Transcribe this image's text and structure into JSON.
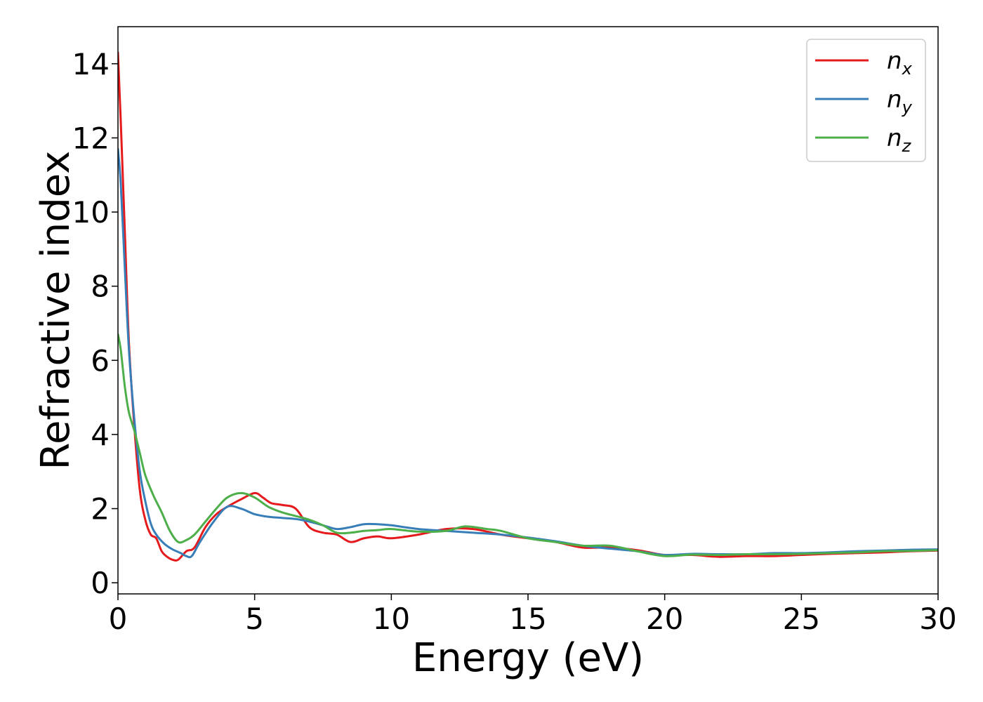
{
  "chart_data": {
    "type": "line",
    "title": "",
    "xlabel": "Energy (eV)",
    "ylabel": "Refractive index",
    "xlim": [
      0,
      30
    ],
    "ylim": [
      -0.3,
      15
    ],
    "xticks": [
      0,
      5,
      10,
      15,
      20,
      25,
      30
    ],
    "yticks": [
      0,
      2,
      4,
      6,
      8,
      10,
      12,
      14
    ],
    "grid": false,
    "legend_position": "top-right",
    "series": [
      {
        "name": "n_x",
        "label_base": "n",
        "label_sub": "x",
        "color": "#e41a1c",
        "x": [
          0,
          0.1,
          0.25,
          0.4,
          0.6,
          0.8,
          1.0,
          1.2,
          1.4,
          1.6,
          1.8,
          2.0,
          2.2,
          2.5,
          2.8,
          3.2,
          3.6,
          4.0,
          4.5,
          5.0,
          5.3,
          5.6,
          6.0,
          6.5,
          7.0,
          7.5,
          8.0,
          8.5,
          9.0,
          9.5,
          10.0,
          11.0,
          12.0,
          13.0,
          14.0,
          15.0,
          16.0,
          17.0,
          18.0,
          19.0,
          20.0,
          21.0,
          22.0,
          23.0,
          24.0,
          25.0,
          26.0,
          27.0,
          28.0,
          29.0,
          30.0
        ],
        "y": [
          14.3,
          12.5,
          9.5,
          6.5,
          4.2,
          2.5,
          1.7,
          1.3,
          1.2,
          0.85,
          0.7,
          0.62,
          0.62,
          0.85,
          0.95,
          1.5,
          1.85,
          2.05,
          2.25,
          2.42,
          2.3,
          2.15,
          2.1,
          2.0,
          1.5,
          1.35,
          1.3,
          1.1,
          1.2,
          1.25,
          1.2,
          1.3,
          1.45,
          1.45,
          1.3,
          1.2,
          1.1,
          0.95,
          0.95,
          0.88,
          0.75,
          0.75,
          0.7,
          0.72,
          0.72,
          0.75,
          0.78,
          0.8,
          0.82,
          0.85,
          0.87
        ]
      },
      {
        "name": "n_y",
        "label_base": "n",
        "label_sub": "y",
        "color": "#377eb8",
        "x": [
          0,
          0.1,
          0.25,
          0.4,
          0.6,
          0.8,
          1.0,
          1.2,
          1.4,
          1.7,
          2.0,
          2.3,
          2.5,
          2.7,
          3.0,
          3.5,
          4.0,
          4.5,
          5.0,
          5.5,
          6.0,
          6.5,
          7.0,
          7.5,
          8.0,
          8.5,
          9.0,
          9.5,
          10.0,
          11.0,
          12.0,
          13.0,
          14.0,
          15.0,
          16.0,
          17.0,
          18.0,
          19.0,
          20.0,
          21.0,
          22.0,
          23.0,
          24.0,
          25.0,
          26.0,
          27.0,
          28.0,
          29.0,
          30.0
        ],
        "y": [
          11.7,
          10.8,
          8.5,
          6.3,
          4.4,
          3.0,
          2.2,
          1.6,
          1.3,
          1.05,
          0.9,
          0.8,
          0.72,
          0.72,
          1.1,
          1.65,
          2.05,
          2.0,
          1.85,
          1.78,
          1.75,
          1.72,
          1.65,
          1.55,
          1.45,
          1.5,
          1.58,
          1.58,
          1.55,
          1.45,
          1.4,
          1.35,
          1.3,
          1.22,
          1.12,
          1.0,
          0.92,
          0.85,
          0.75,
          0.78,
          0.77,
          0.77,
          0.8,
          0.8,
          0.82,
          0.85,
          0.87,
          0.89,
          0.9
        ]
      },
      {
        "name": "n_z",
        "label_base": "n",
        "label_sub": "z",
        "color": "#4daf4a",
        "x": [
          0,
          0.1,
          0.25,
          0.4,
          0.6,
          0.8,
          1.0,
          1.3,
          1.6,
          1.9,
          2.2,
          2.5,
          2.8,
          3.2,
          3.6,
          4.0,
          4.5,
          5.0,
          5.5,
          6.0,
          6.5,
          7.0,
          7.5,
          8.0,
          8.5,
          9.0,
          9.5,
          10.0,
          11.0,
          12.0,
          12.7,
          13.5,
          14.0,
          15.0,
          16.0,
          17.0,
          18.0,
          19.0,
          20.0,
          21.0,
          22.0,
          23.0,
          24.0,
          25.0,
          26.0,
          27.0,
          28.0,
          29.0,
          30.0
        ],
        "y": [
          6.7,
          6.3,
          5.3,
          4.6,
          4.1,
          3.5,
          2.9,
          2.35,
          1.9,
          1.4,
          1.1,
          1.15,
          1.3,
          1.65,
          2.0,
          2.3,
          2.42,
          2.3,
          2.05,
          1.9,
          1.8,
          1.7,
          1.55,
          1.35,
          1.35,
          1.4,
          1.42,
          1.45,
          1.38,
          1.4,
          1.52,
          1.45,
          1.4,
          1.2,
          1.1,
          1.0,
          1.0,
          0.85,
          0.72,
          0.76,
          0.75,
          0.77,
          0.77,
          0.78,
          0.8,
          0.82,
          0.85,
          0.86,
          0.88
        ]
      }
    ]
  }
}
